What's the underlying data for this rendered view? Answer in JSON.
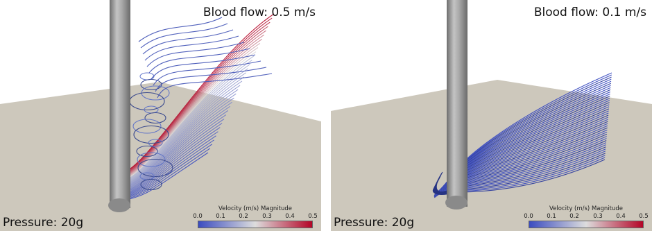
{
  "panels": [
    {
      "flow_label": "Blood flow: 0.5 m/s",
      "pressure_label": "Pressure: 20g",
      "colorbar": {
        "title": "Velocity (m/s) Magnitude",
        "ticks": [
          "0.0",
          "0.1",
          "0.2",
          "0.3",
          "0.4",
          "0.5"
        ],
        "range": [
          0.0,
          0.5
        ]
      }
    },
    {
      "flow_label": "Blood flow: 0.1 m/s",
      "pressure_label": "Pressure: 20g",
      "colorbar": {
        "title": "Velocity (m/s) Magnitude",
        "ticks": [
          "0.0",
          "0.1",
          "0.2",
          "0.3",
          "0.4",
          "0.5"
        ],
        "range": [
          0.0,
          0.5
        ]
      }
    }
  ],
  "colors": {
    "ground": "#cdc8bc",
    "needle": "#9c9c9c",
    "colormap_low": "#3b4cc0",
    "colormap_mid": "#dddddd",
    "colormap_high": "#b40426"
  }
}
